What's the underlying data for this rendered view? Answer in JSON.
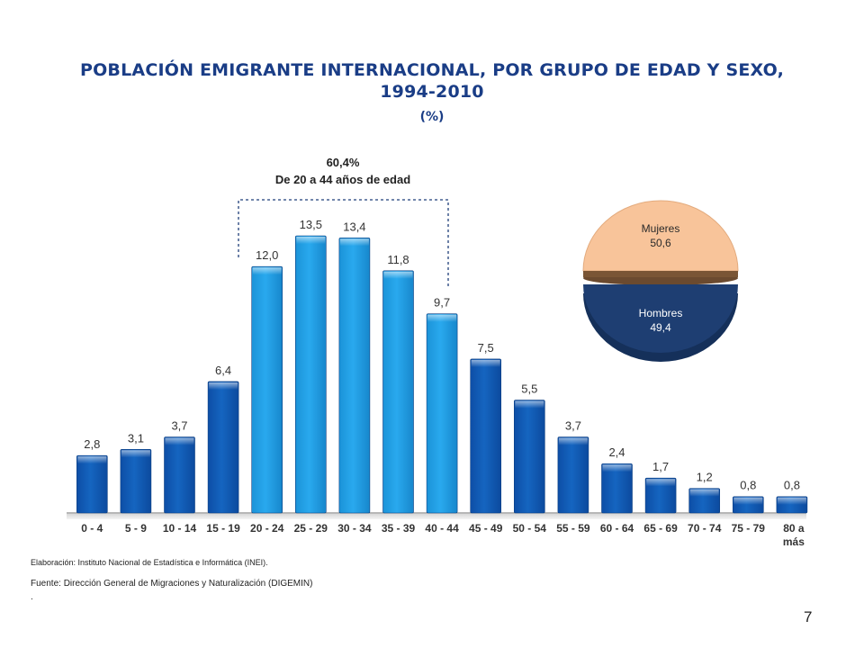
{
  "title": {
    "line1": "POBLACIÓN EMIGRANTE INTERNACIONAL, POR GRUPO DE EDAD Y SEXO,",
    "line2": "1994-2010",
    "line3": "(%)"
  },
  "chart_data": [
    {
      "type": "bar",
      "categories": [
        "0 - 4",
        "5 - 9",
        "10 - 14",
        "15 - 19",
        "20 - 24",
        "25 - 29",
        "30 - 34",
        "35 - 39",
        "40 - 44",
        "45 - 49",
        "50 - 54",
        "55 - 59",
        "60 - 64",
        "65 - 69",
        "70 - 74",
        "75 - 79",
        "80 a más"
      ],
      "values": [
        2.8,
        3.1,
        3.7,
        6.4,
        12.0,
        13.5,
        13.4,
        11.8,
        9.7,
        7.5,
        5.5,
        3.7,
        2.4,
        1.7,
        1.2,
        0.8,
        0.8
      ],
      "value_labels": [
        "2,8",
        "3,1",
        "3,7",
        "6,4",
        "12,0",
        "13,5",
        "13,4",
        "11,8",
        "9,7",
        "7,5",
        "5,5",
        "3,7",
        "2,4",
        "1,7",
        "1,2",
        "0,8",
        "0,8"
      ],
      "highlight_indices": [
        4,
        5,
        6,
        7,
        8
      ],
      "ylim": [
        0,
        14
      ],
      "grid": false,
      "colors": {
        "normal": "#1565c0",
        "highlight": "#29a9ee"
      },
      "annotation": {
        "value": "60,4%",
        "text": "De 20 a 44 años de edad"
      }
    },
    {
      "type": "pie",
      "labels": [
        "Mujeres",
        "Hombres"
      ],
      "values": [
        50.6,
        49.4
      ],
      "value_labels": [
        "50,6",
        "49,4"
      ],
      "colors": [
        "#f8c49a",
        "#1e3e72"
      ]
    }
  ],
  "footer": {
    "elaboracion": "Elaboración: Instituto Nacional de Estadística e Informática (INEI).",
    "fuente": "Fuente: Dirección General de Migraciones y Naturalización (DIGEMIN)",
    "dot": ".",
    "page_number": "7"
  }
}
